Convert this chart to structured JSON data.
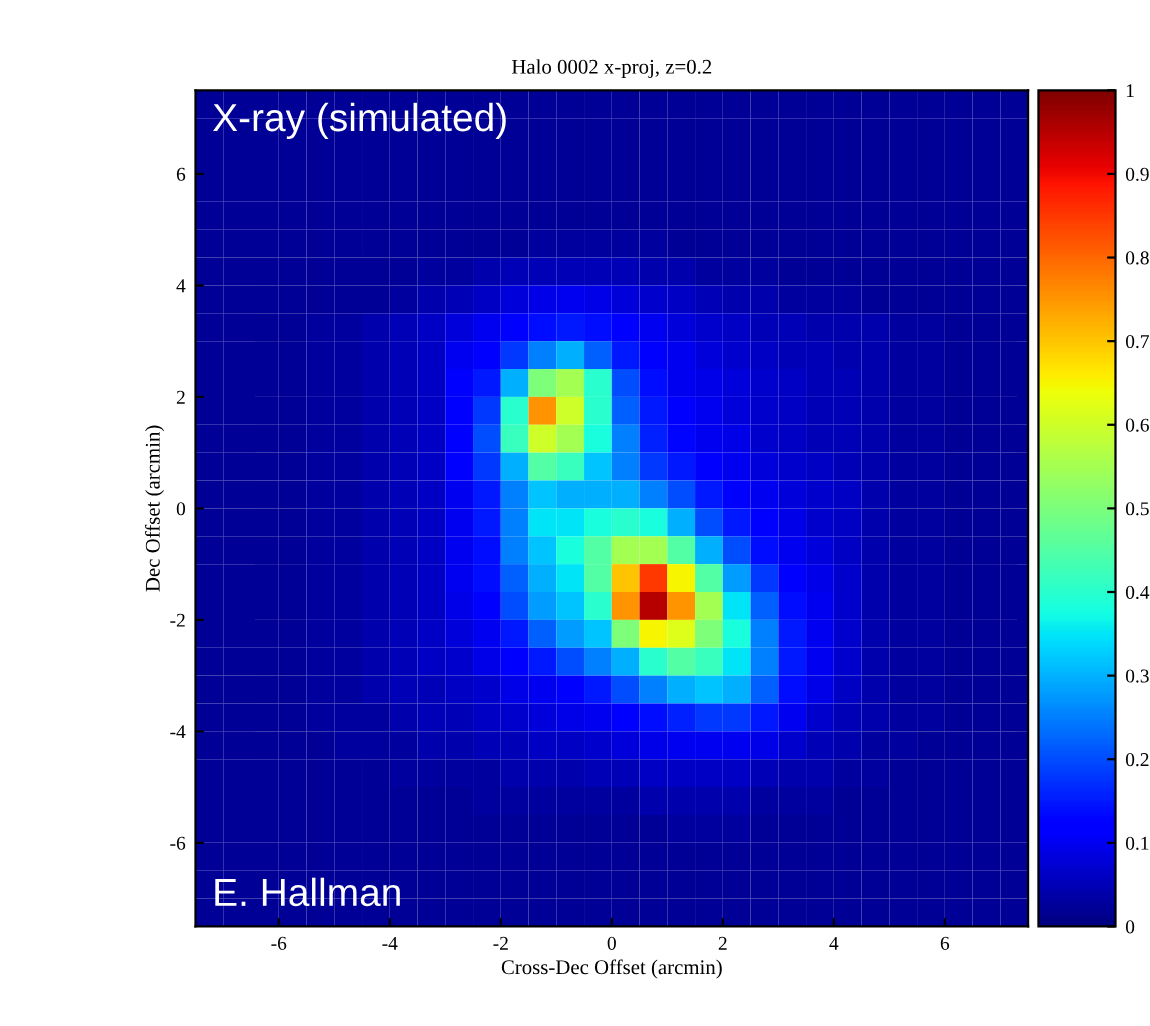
{
  "chart_data": {
    "type": "heatmap",
    "title": "Halo 0002 x-proj, z=0.2",
    "xlabel": "Cross-Dec Offset (arcmin)",
    "ylabel": "Dec Offset (arcmin)",
    "annotations": [
      "X-ray (simulated)",
      "E. Hallman"
    ],
    "xlim": [
      -7.5,
      7.5
    ],
    "ylim": [
      -7.5,
      7.5
    ],
    "xticks": [
      -6,
      -4,
      -2,
      0,
      2,
      4,
      6
    ],
    "yticks": [
      6,
      4,
      2,
      0,
      -2,
      -4,
      -6
    ],
    "clim": [
      0,
      1
    ],
    "cticks": [
      0,
      0.1,
      0.2,
      0.3,
      0.4,
      0.5,
      0.6,
      0.7,
      0.8,
      0.9,
      1
    ],
    "cells": [
      [
        0.02,
        0.02,
        0.02,
        0.02,
        0.02,
        0.02,
        0.02,
        0.02,
        0.02,
        0.02,
        0.02,
        0.02,
        0.02,
        0.02,
        0.02,
        0.02,
        0.02,
        0.02,
        0.02,
        0.02,
        0.02,
        0.02,
        0.02,
        0.02,
        0.02,
        0.02,
        0.02,
        0.02,
        0.02,
        0.02
      ],
      [
        0.02,
        0.02,
        0.02,
        0.02,
        0.02,
        0.02,
        0.02,
        0.02,
        0.02,
        0.02,
        0.02,
        0.02,
        0.02,
        0.02,
        0.02,
        0.02,
        0.02,
        0.02,
        0.02,
        0.02,
        0.02,
        0.02,
        0.02,
        0.02,
        0.02,
        0.02,
        0.02,
        0.02,
        0.02,
        0.02
      ],
      [
        0.02,
        0.02,
        0.02,
        0.02,
        0.02,
        0.02,
        0.02,
        0.02,
        0.02,
        0.02,
        0.02,
        0.02,
        0.02,
        0.02,
        0.02,
        0.02,
        0.02,
        0.02,
        0.02,
        0.02,
        0.02,
        0.02,
        0.02,
        0.02,
        0.02,
        0.02,
        0.02,
        0.02,
        0.02,
        0.02
      ],
      [
        0.02,
        0.02,
        0.02,
        0.02,
        0.02,
        0.02,
        0.02,
        0.02,
        0.02,
        0.02,
        0.02,
        0.02,
        0.02,
        0.02,
        0.02,
        0.02,
        0.02,
        0.02,
        0.02,
        0.02,
        0.02,
        0.02,
        0.02,
        0.02,
        0.02,
        0.02,
        0.02,
        0.02,
        0.02,
        0.02
      ],
      [
        0.02,
        0.02,
        0.02,
        0.02,
        0.02,
        0.02,
        0.02,
        0.02,
        0.02,
        0.02,
        0.02,
        0.02,
        0.02,
        0.02,
        0.02,
        0.02,
        0.02,
        0.02,
        0.02,
        0.02,
        0.02,
        0.02,
        0.02,
        0.02,
        0.02,
        0.02,
        0.02,
        0.02,
        0.02,
        0.02
      ],
      [
        0.02,
        0.02,
        0.02,
        0.02,
        0.02,
        0.02,
        0.02,
        0.02,
        0.02,
        0.02,
        0.02,
        0.02,
        0.03,
        0.03,
        0.03,
        0.03,
        0.03,
        0.02,
        0.02,
        0.02,
        0.02,
        0.02,
        0.02,
        0.02,
        0.02,
        0.02,
        0.02,
        0.02,
        0.02,
        0.02
      ],
      [
        0.02,
        0.02,
        0.02,
        0.02,
        0.02,
        0.02,
        0.02,
        0.02,
        0.03,
        0.03,
        0.04,
        0.05,
        0.05,
        0.05,
        0.05,
        0.05,
        0.04,
        0.04,
        0.03,
        0.03,
        0.03,
        0.02,
        0.02,
        0.02,
        0.02,
        0.02,
        0.02,
        0.02,
        0.02,
        0.02
      ],
      [
        0.02,
        0.02,
        0.02,
        0.02,
        0.02,
        0.02,
        0.02,
        0.03,
        0.04,
        0.05,
        0.06,
        0.08,
        0.09,
        0.1,
        0.09,
        0.08,
        0.07,
        0.06,
        0.05,
        0.04,
        0.04,
        0.03,
        0.03,
        0.03,
        0.02,
        0.02,
        0.02,
        0.02,
        0.02,
        0.02
      ],
      [
        0.02,
        0.02,
        0.02,
        0.02,
        0.03,
        0.03,
        0.04,
        0.05,
        0.06,
        0.08,
        0.1,
        0.12,
        0.14,
        0.15,
        0.14,
        0.12,
        0.1,
        0.08,
        0.07,
        0.06,
        0.05,
        0.05,
        0.04,
        0.04,
        0.04,
        0.03,
        0.03,
        0.02,
        0.02,
        0.02
      ],
      [
        0.02,
        0.02,
        0.02,
        0.02,
        0.03,
        0.03,
        0.04,
        0.05,
        0.06,
        0.1,
        0.12,
        0.18,
        0.25,
        0.3,
        0.22,
        0.15,
        0.12,
        0.1,
        0.08,
        0.07,
        0.06,
        0.05,
        0.05,
        0.04,
        0.04,
        0.03,
        0.03,
        0.02,
        0.02,
        0.02
      ],
      [
        0.02,
        0.02,
        0.02,
        0.02,
        0.03,
        0.03,
        0.04,
        0.05,
        0.06,
        0.12,
        0.15,
        0.3,
        0.5,
        0.55,
        0.4,
        0.2,
        0.14,
        0.1,
        0.09,
        0.08,
        0.07,
        0.06,
        0.05,
        0.05,
        0.04,
        0.03,
        0.03,
        0.02,
        0.02,
        0.02
      ],
      [
        0.02,
        0.02,
        0.02,
        0.02,
        0.03,
        0.03,
        0.04,
        0.05,
        0.06,
        0.12,
        0.18,
        0.4,
        0.75,
        0.6,
        0.4,
        0.22,
        0.15,
        0.12,
        0.1,
        0.08,
        0.07,
        0.06,
        0.05,
        0.05,
        0.04,
        0.03,
        0.03,
        0.02,
        0.02,
        0.02
      ],
      [
        0.02,
        0.02,
        0.02,
        0.02,
        0.03,
        0.03,
        0.04,
        0.05,
        0.06,
        0.12,
        0.2,
        0.42,
        0.6,
        0.55,
        0.38,
        0.25,
        0.16,
        0.13,
        0.1,
        0.09,
        0.07,
        0.06,
        0.05,
        0.05,
        0.04,
        0.03,
        0.03,
        0.02,
        0.02,
        0.02
      ],
      [
        0.02,
        0.02,
        0.02,
        0.02,
        0.03,
        0.03,
        0.04,
        0.05,
        0.06,
        0.12,
        0.18,
        0.3,
        0.45,
        0.42,
        0.32,
        0.25,
        0.18,
        0.15,
        0.12,
        0.1,
        0.08,
        0.07,
        0.06,
        0.05,
        0.04,
        0.03,
        0.03,
        0.02,
        0.02,
        0.02
      ],
      [
        0.02,
        0.02,
        0.02,
        0.02,
        0.03,
        0.03,
        0.04,
        0.05,
        0.06,
        0.1,
        0.15,
        0.25,
        0.32,
        0.3,
        0.3,
        0.3,
        0.25,
        0.2,
        0.15,
        0.12,
        0.1,
        0.08,
        0.07,
        0.06,
        0.04,
        0.03,
        0.03,
        0.02,
        0.02,
        0.02
      ],
      [
        0.02,
        0.02,
        0.02,
        0.02,
        0.03,
        0.03,
        0.04,
        0.05,
        0.06,
        0.1,
        0.15,
        0.25,
        0.35,
        0.35,
        0.38,
        0.4,
        0.38,
        0.3,
        0.2,
        0.15,
        0.12,
        0.09,
        0.07,
        0.06,
        0.04,
        0.03,
        0.03,
        0.02,
        0.02,
        0.02
      ],
      [
        0.02,
        0.02,
        0.02,
        0.02,
        0.03,
        0.03,
        0.04,
        0.05,
        0.06,
        0.1,
        0.14,
        0.25,
        0.32,
        0.38,
        0.45,
        0.55,
        0.55,
        0.45,
        0.3,
        0.2,
        0.14,
        0.1,
        0.08,
        0.06,
        0.04,
        0.03,
        0.03,
        0.02,
        0.02,
        0.02
      ],
      [
        0.02,
        0.02,
        0.02,
        0.02,
        0.03,
        0.03,
        0.04,
        0.05,
        0.06,
        0.1,
        0.14,
        0.22,
        0.3,
        0.35,
        0.45,
        0.7,
        0.85,
        0.65,
        0.45,
        0.28,
        0.18,
        0.12,
        0.09,
        0.07,
        0.04,
        0.03,
        0.03,
        0.02,
        0.02,
        0.02
      ],
      [
        0.02,
        0.02,
        0.02,
        0.02,
        0.03,
        0.03,
        0.04,
        0.05,
        0.06,
        0.09,
        0.12,
        0.2,
        0.28,
        0.32,
        0.4,
        0.75,
        0.95,
        0.75,
        0.55,
        0.35,
        0.22,
        0.14,
        0.1,
        0.07,
        0.04,
        0.03,
        0.03,
        0.02,
        0.02,
        0.02
      ],
      [
        0.02,
        0.02,
        0.02,
        0.02,
        0.03,
        0.03,
        0.04,
        0.05,
        0.06,
        0.08,
        0.1,
        0.15,
        0.22,
        0.28,
        0.32,
        0.5,
        0.65,
        0.62,
        0.5,
        0.38,
        0.25,
        0.15,
        0.1,
        0.07,
        0.04,
        0.03,
        0.03,
        0.02,
        0.02,
        0.02
      ],
      [
        0.02,
        0.02,
        0.02,
        0.02,
        0.03,
        0.03,
        0.04,
        0.05,
        0.06,
        0.07,
        0.09,
        0.12,
        0.15,
        0.2,
        0.25,
        0.3,
        0.4,
        0.45,
        0.42,
        0.35,
        0.25,
        0.15,
        0.1,
        0.07,
        0.04,
        0.03,
        0.03,
        0.02,
        0.02,
        0.02
      ],
      [
        0.02,
        0.02,
        0.02,
        0.02,
        0.03,
        0.03,
        0.04,
        0.05,
        0.05,
        0.06,
        0.07,
        0.09,
        0.1,
        0.12,
        0.15,
        0.2,
        0.25,
        0.3,
        0.32,
        0.3,
        0.22,
        0.14,
        0.09,
        0.06,
        0.04,
        0.03,
        0.03,
        0.02,
        0.02,
        0.02
      ],
      [
        0.02,
        0.02,
        0.02,
        0.02,
        0.03,
        0.03,
        0.03,
        0.04,
        0.05,
        0.05,
        0.06,
        0.07,
        0.08,
        0.09,
        0.1,
        0.12,
        0.14,
        0.16,
        0.18,
        0.18,
        0.15,
        0.1,
        0.07,
        0.05,
        0.04,
        0.03,
        0.03,
        0.02,
        0.02,
        0.02
      ],
      [
        0.02,
        0.02,
        0.02,
        0.02,
        0.02,
        0.03,
        0.03,
        0.03,
        0.04,
        0.04,
        0.05,
        0.05,
        0.06,
        0.06,
        0.07,
        0.08,
        0.09,
        0.1,
        0.1,
        0.1,
        0.09,
        0.07,
        0.05,
        0.04,
        0.03,
        0.03,
        0.02,
        0.02,
        0.02,
        0.02
      ],
      [
        0.02,
        0.02,
        0.02,
        0.02,
        0.02,
        0.02,
        0.02,
        0.03,
        0.03,
        0.03,
        0.03,
        0.04,
        0.04,
        0.04,
        0.05,
        0.05,
        0.06,
        0.06,
        0.06,
        0.06,
        0.05,
        0.04,
        0.04,
        0.03,
        0.03,
        0.02,
        0.02,
        0.02,
        0.02,
        0.02
      ],
      [
        0.02,
        0.02,
        0.02,
        0.02,
        0.02,
        0.02,
        0.02,
        0.02,
        0.02,
        0.02,
        0.03,
        0.03,
        0.03,
        0.03,
        0.03,
        0.03,
        0.04,
        0.04,
        0.04,
        0.04,
        0.03,
        0.03,
        0.03,
        0.02,
        0.02,
        0.02,
        0.02,
        0.02,
        0.02,
        0.02
      ],
      [
        0.02,
        0.02,
        0.02,
        0.02,
        0.02,
        0.02,
        0.02,
        0.02,
        0.02,
        0.02,
        0.02,
        0.02,
        0.02,
        0.02,
        0.02,
        0.02,
        0.02,
        0.03,
        0.03,
        0.03,
        0.02,
        0.02,
        0.02,
        0.02,
        0.02,
        0.02,
        0.02,
        0.02,
        0.02,
        0.02
      ],
      [
        0.02,
        0.02,
        0.02,
        0.02,
        0.02,
        0.02,
        0.02,
        0.02,
        0.02,
        0.02,
        0.02,
        0.02,
        0.02,
        0.02,
        0.02,
        0.02,
        0.02,
        0.02,
        0.02,
        0.02,
        0.02,
        0.02,
        0.02,
        0.02,
        0.02,
        0.02,
        0.02,
        0.02,
        0.02,
        0.02
      ],
      [
        0.02,
        0.02,
        0.02,
        0.02,
        0.02,
        0.02,
        0.02,
        0.02,
        0.02,
        0.02,
        0.02,
        0.02,
        0.02,
        0.02,
        0.02,
        0.02,
        0.02,
        0.02,
        0.02,
        0.02,
        0.02,
        0.02,
        0.02,
        0.02,
        0.02,
        0.02,
        0.02,
        0.02,
        0.02,
        0.02
      ],
      [
        0.02,
        0.02,
        0.02,
        0.02,
        0.02,
        0.02,
        0.02,
        0.02,
        0.02,
        0.02,
        0.02,
        0.02,
        0.02,
        0.02,
        0.02,
        0.02,
        0.02,
        0.02,
        0.02,
        0.02,
        0.02,
        0.02,
        0.02,
        0.02,
        0.02,
        0.02,
        0.02,
        0.02,
        0.02,
        0.02
      ]
    ]
  }
}
